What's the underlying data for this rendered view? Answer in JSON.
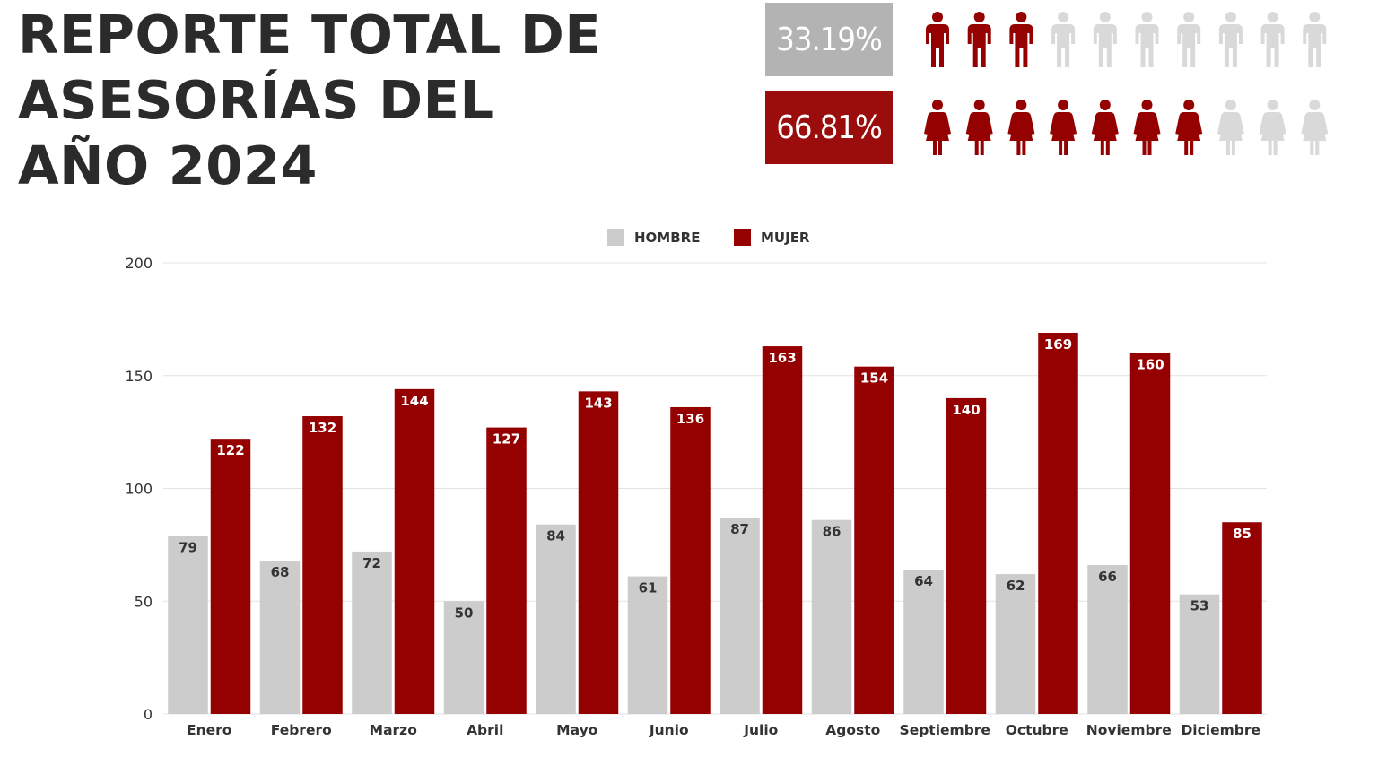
{
  "header": {
    "title_lines": [
      "REPORTE TOTAL DE",
      "ASESORÍAS DEL",
      "AÑO 2024"
    ]
  },
  "stats": {
    "men": {
      "label": "33.19%",
      "value": 0.3319,
      "filled_icons": 3,
      "total_icons": 10,
      "icon": "man-icon"
    },
    "women": {
      "label": "66.81%",
      "value": 0.6681,
      "filled_icons": 7,
      "total_icons": 10,
      "icon": "woman-icon"
    }
  },
  "colors": {
    "men": "#cccccc",
    "women": "#950000",
    "icon_inactive": "#d9d9d9",
    "men_badge": "#b3b3b3",
    "women_badge": "#9b0c0c",
    "title": "#2b2b2b"
  },
  "chart_data": {
    "type": "bar",
    "categories": [
      "Enero",
      "Febrero",
      "Marzo",
      "Abril",
      "Mayo",
      "Junio",
      "Julio",
      "Agosto",
      "Septiembre",
      "Octubre",
      "Noviembre",
      "Diciembre"
    ],
    "series": [
      {
        "name": "HOMBRE",
        "values": [
          79,
          68,
          72,
          50,
          84,
          61,
          87,
          86,
          64,
          62,
          66,
          53
        ],
        "color": "#cccccc",
        "label_color": "#333333"
      },
      {
        "name": "MUJER",
        "values": [
          122,
          132,
          144,
          127,
          143,
          136,
          163,
          154,
          140,
          169,
          160,
          85
        ],
        "color": "#950000",
        "label_color": "#ffffff"
      }
    ],
    "ylim": [
      0,
      200
    ],
    "yticks": [
      0,
      50,
      100,
      150,
      200
    ],
    "grid": true,
    "legend": "top-center",
    "data_labels": true
  }
}
